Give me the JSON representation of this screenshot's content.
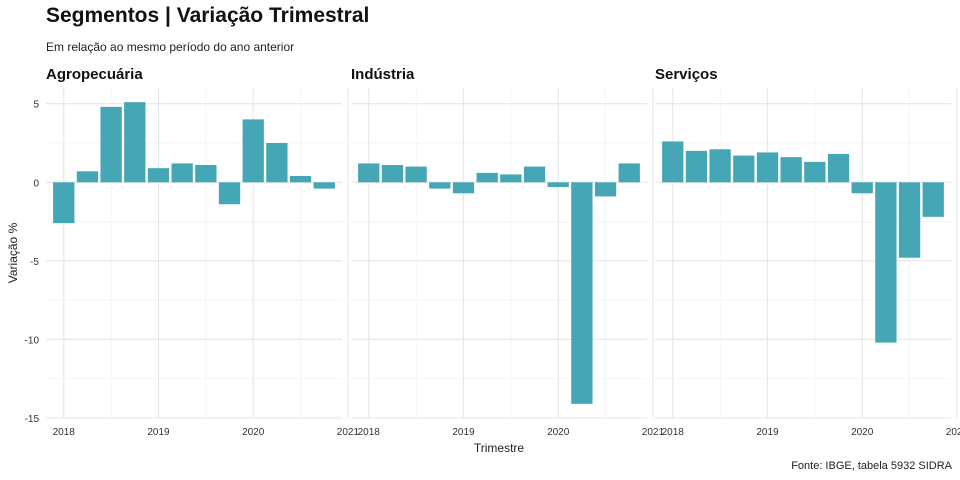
{
  "title": "Segmentos | Variação Trimestral",
  "subtitle": "Em relação ao mesmo período do ano anterior",
  "caption": "Fonte: IBGE, tabela 5932 SIDRA",
  "colors": {
    "bar": "#45A7B5",
    "grid_major": "#e6e6e6",
    "grid_minor": "#f2f2f2"
  },
  "chart_data": {
    "type": "bar",
    "xlabel": "Trimestre",
    "ylabel": "Variação %",
    "ylim": [
      -15,
      6
    ],
    "yticks": [
      -15,
      -10,
      -5,
      0,
      5
    ],
    "xticks": [
      "2018",
      "2019",
      "2020",
      "2021"
    ],
    "x": [
      "2018 T1",
      "2018 T2",
      "2018 T3",
      "2018 T4",
      "2019 T1",
      "2019 T2",
      "2019 T3",
      "2019 T4",
      "2020 T1",
      "2020 T2",
      "2020 T3",
      "2020 T4"
    ],
    "grid": true,
    "facets": [
      {
        "title": "Agropecuária",
        "values": [
          -2.6,
          0.7,
          4.8,
          5.1,
          0.9,
          1.2,
          1.1,
          -1.4,
          4.0,
          2.5,
          0.4,
          -0.4
        ]
      },
      {
        "title": "Indústria",
        "values": [
          1.2,
          1.1,
          1.0,
          -0.4,
          -0.7,
          0.6,
          0.5,
          1.0,
          -0.3,
          -14.1,
          -0.9,
          1.2
        ]
      },
      {
        "title": "Serviços",
        "values": [
          2.6,
          2.0,
          2.1,
          1.7,
          1.9,
          1.6,
          1.3,
          1.8,
          -0.7,
          -10.2,
          -4.8,
          -2.2
        ]
      }
    ]
  }
}
